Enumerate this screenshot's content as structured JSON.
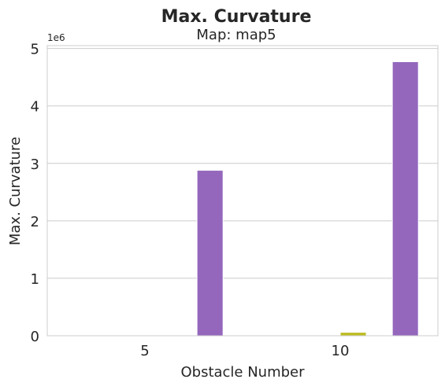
{
  "chart_data": {
    "type": "bar",
    "title": "Max. Curvature",
    "subtitle": "Map: map5",
    "xlabel": "Obstacle Number",
    "ylabel": "Max. Curvature",
    "y_multiplier_label": "1e6",
    "categories": [
      "5",
      "10"
    ],
    "ylim": [
      0,
      5.05
    ],
    "yticks": [
      0,
      1,
      2,
      3,
      4,
      5
    ],
    "grid": true,
    "series": [
      {
        "values": [
          0.0,
          0.06
        ],
        "color": "#bcbd22"
      },
      {
        "values": [
          0.0,
          0.0
        ],
        "color": "#17becf"
      },
      {
        "values": [
          2.88,
          4.77
        ],
        "color": "#9467bd"
      }
    ]
  }
}
